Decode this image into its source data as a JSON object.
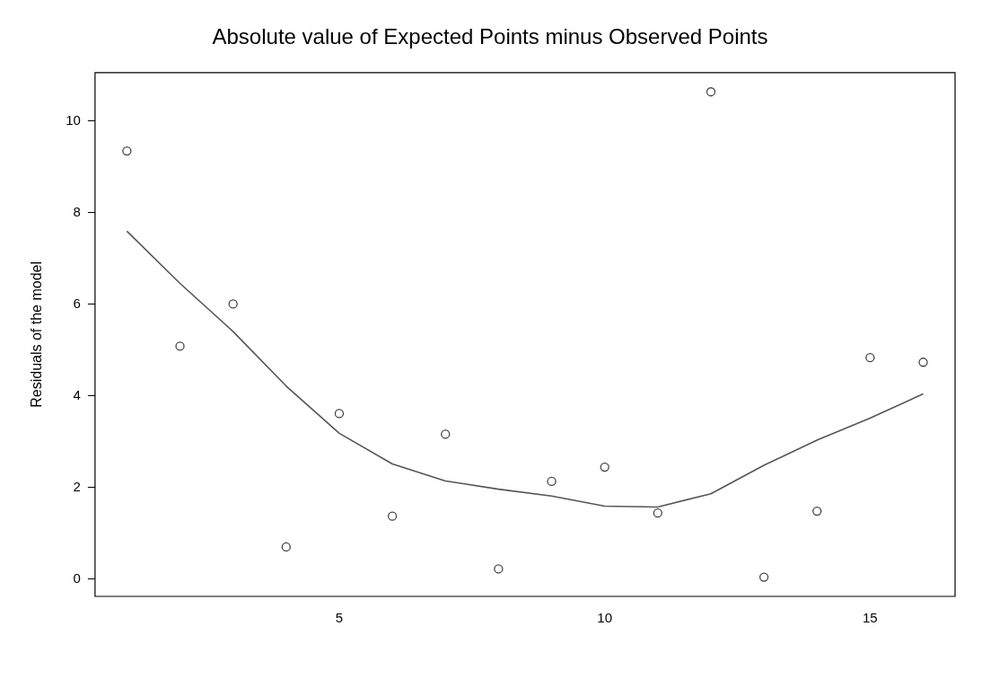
{
  "chart_data": {
    "type": "scatter",
    "title": "Absolute value of Expected Points minus Observed Points",
    "ylabel": "Residuals of the model",
    "xlim": [
      0.4,
      16.6
    ],
    "xticks": [
      5,
      10,
      15
    ],
    "ylim": [
      -0.38,
      11.05
    ],
    "yticks": [
      0,
      2,
      4,
      6,
      8,
      10
    ],
    "grid": false,
    "legend": false,
    "series": [
      {
        "marker": "circle",
        "color": "#444444",
        "x": [
          1,
          2,
          3,
          4,
          5,
          6,
          7,
          8,
          9,
          10,
          11,
          12,
          13,
          14,
          15,
          16
        ],
        "values": [
          9.34,
          5.08,
          6.0,
          0.7,
          3.61,
          1.37,
          3.16,
          0.22,
          2.13,
          2.44,
          1.44,
          10.63,
          0.04,
          1.48,
          4.83,
          4.73
        ]
      },
      {
        "type": "line",
        "marker": "none",
        "line_style": "solid",
        "color": "#555555",
        "x": [
          1,
          2,
          3,
          4,
          5,
          6,
          7,
          8,
          9,
          10,
          11,
          12,
          13,
          14,
          15,
          16
        ],
        "values": [
          7.59,
          6.45,
          5.4,
          4.21,
          3.18,
          2.51,
          2.14,
          1.96,
          1.81,
          1.59,
          1.57,
          1.86,
          2.48,
          3.03,
          3.51,
          4.04
        ]
      }
    ]
  }
}
